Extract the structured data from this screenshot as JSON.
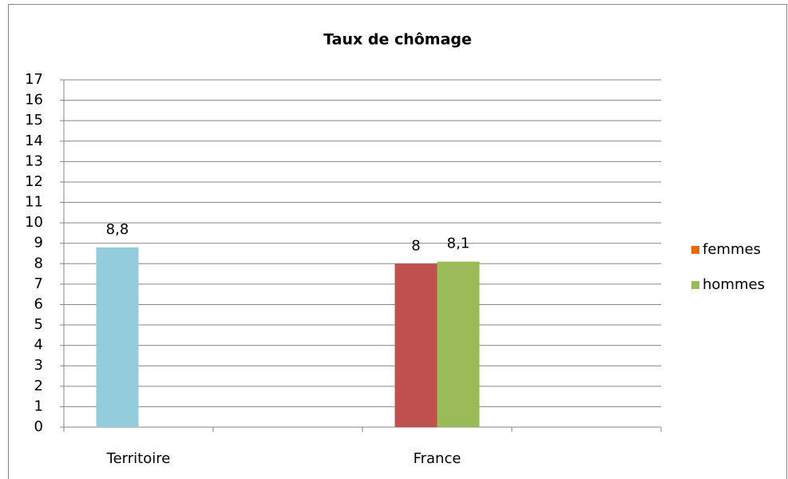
{
  "chart_data": {
    "type": "bar",
    "title": "Taux de chômage",
    "categories": [
      "Territoire",
      null,
      "France",
      null
    ],
    "series": [
      {
        "name": "femmes",
        "color": "#e36c09",
        "point_colors": [
          "#93cddd",
          null,
          "#c0504d",
          null
        ],
        "values": [
          8.8,
          null,
          8,
          null
        ],
        "value_labels": [
          "8,8",
          null,
          "8",
          null
        ]
      },
      {
        "name": "hommes",
        "color": "#9bbb59",
        "values": [
          null,
          null,
          8.1,
          null
        ],
        "value_labels": [
          null,
          null,
          "8,1",
          null
        ]
      }
    ],
    "ylim": [
      0,
      17
    ],
    "yticks": [
      0,
      1,
      2,
      3,
      4,
      5,
      6,
      7,
      8,
      9,
      10,
      11,
      12,
      13,
      14,
      15,
      16,
      17
    ],
    "grid": true,
    "legend": "right"
  }
}
